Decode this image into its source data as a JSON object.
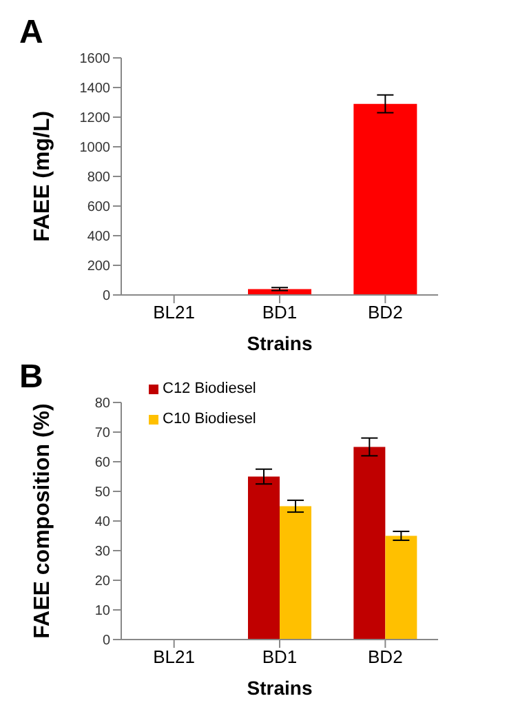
{
  "chart_data": [
    {
      "type": "bar",
      "title": "A",
      "xlabel": "Strains",
      "ylabel": "FAEE (mg/L)",
      "categories": [
        "BL21",
        "BD1",
        "BD2"
      ],
      "values": [
        0,
        40,
        1290
      ],
      "errors": [
        null,
        10,
        60
      ],
      "color": "#ff0000",
      "ylim": [
        0,
        1600
      ],
      "yticks": [
        0,
        200,
        400,
        600,
        800,
        1000,
        1200,
        1400,
        1600
      ],
      "grid": false,
      "legend": false
    },
    {
      "type": "bar",
      "title": "B",
      "xlabel": "Strains",
      "ylabel": "FAEE composition (%)",
      "categories": [
        "BL21",
        "BD1",
        "BD2"
      ],
      "series": [
        {
          "name": "C12 Biodiesel",
          "color": "#c00000",
          "values": [
            0,
            55,
            65
          ],
          "errors": [
            null,
            2.5,
            3
          ]
        },
        {
          "name": "C10 Biodiesel",
          "color": "#ffc000",
          "values": [
            0,
            45,
            35
          ],
          "errors": [
            null,
            2,
            1.5
          ]
        }
      ],
      "ylim": [
        0,
        80
      ],
      "yticks": [
        0,
        10,
        20,
        30,
        40,
        50,
        60,
        70,
        80
      ],
      "grid": false,
      "legend": "top left"
    }
  ]
}
